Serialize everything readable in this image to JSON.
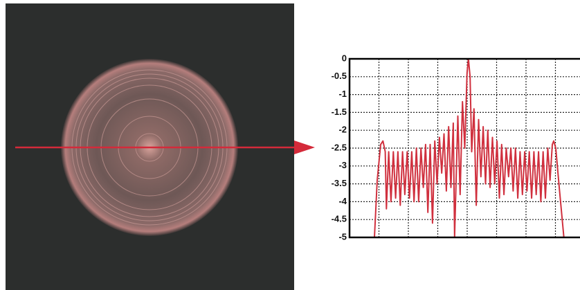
{
  "chart_data": {
    "type": "line",
    "x": [
      10.8,
      12,
      13.5,
      14.5,
      15.5,
      16,
      17,
      18,
      19,
      20,
      21,
      22,
      23,
      24,
      25,
      26,
      27,
      28,
      29,
      30,
      31,
      32,
      33,
      34,
      35,
      36,
      37,
      38,
      39,
      40,
      41,
      42,
      43,
      44,
      45,
      45.6,
      47,
      48,
      49,
      50,
      51,
      51.6,
      52.3,
      53,
      54,
      55,
      56,
      57,
      58,
      59,
      60,
      61,
      62,
      63,
      64,
      65,
      66,
      67,
      68,
      69,
      70,
      71,
      72,
      73,
      74,
      75,
      76,
      77,
      78,
      79,
      80,
      81,
      82,
      83,
      84,
      85,
      86,
      87,
      88,
      88.6,
      89.5,
      91,
      93
    ],
    "values": [
      -5,
      -3.4,
      -2.4,
      -2.3,
      -2.6,
      -4.2,
      -2.6,
      -4.0,
      -2.6,
      -3.9,
      -2.6,
      -4.1,
      -2.6,
      -3.8,
      -2.6,
      -3.9,
      -2.6,
      -4.0,
      -2.5,
      -4.0,
      -2.5,
      -3.6,
      -2.4,
      -4.3,
      -2.4,
      -4.6,
      -2.3,
      -3.5,
      -2.2,
      -3.2,
      -2.1,
      -3.7,
      -1.9,
      -3.6,
      -1.8,
      -5,
      -1.6,
      -3.8,
      -1.2,
      -2.5,
      -0.4,
      0,
      -0.5,
      -2.6,
      -1.4,
      -4.1,
      -1.7,
      -3.3,
      -1.9,
      -3.5,
      -2.0,
      -3.6,
      -2.2,
      -3.5,
      -2.3,
      -3.9,
      -2.4,
      -3.8,
      -2.5,
      -3.3,
      -2.5,
      -3.7,
      -2.5,
      -3.9,
      -2.6,
      -3.8,
      -2.6,
      -3.7,
      -2.6,
      -3.9,
      -2.6,
      -3.8,
      -2.6,
      -4.0,
      -2.6,
      -3.9,
      -2.5,
      -3.4,
      -2.4,
      -2.3,
      -2.5,
      -3.6,
      -5
    ],
    "color": "#d0303e",
    "xlim": [
      0,
      100
    ],
    "ylim": [
      -5,
      0
    ],
    "yticks": [
      0,
      -0.5,
      -1,
      -1.5,
      -2,
      -2.5,
      -3,
      -3.5,
      -4,
      -4.5,
      -5
    ],
    "grid": true
  }
}
